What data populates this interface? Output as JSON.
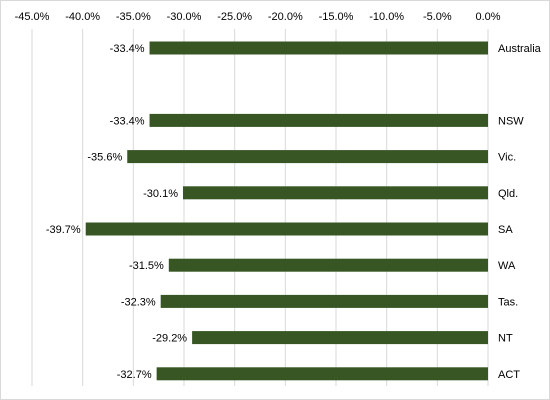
{
  "chart_data": {
    "type": "bar",
    "orientation": "horizontal",
    "categories": [
      "Australia",
      "",
      "NSW",
      "Vic.",
      "Qld.",
      "SA",
      "WA",
      "Tas.",
      "NT",
      "ACT"
    ],
    "values": [
      -33.4,
      null,
      -33.4,
      -35.6,
      -30.1,
      -39.7,
      -31.5,
      -32.3,
      -29.2,
      -32.7
    ],
    "data_labels": [
      "-33.4%",
      "",
      "-33.4%",
      "-35.6%",
      "-30.1%",
      "-39.7%",
      "-31.5%",
      "-32.3%",
      "-29.2%",
      "-32.7%"
    ],
    "xlim": [
      -45,
      0
    ],
    "x_tick_values": [
      -45,
      -40,
      -35,
      -30,
      -25,
      -20,
      -15,
      -10,
      -5,
      0
    ],
    "x_tick_labels": [
      "-45.0%",
      "-40.0%",
      "-35.0%",
      "-30.0%",
      "-25.0%",
      "-20.0%",
      "-15.0%",
      "-10.0%",
      "-5.0%",
      "0.0%"
    ],
    "x_axis_position": "top",
    "category_labels_position": "right",
    "grid": true,
    "legend": "none",
    "bar_color": "#375623",
    "grid_color": "#d9d9d9"
  }
}
